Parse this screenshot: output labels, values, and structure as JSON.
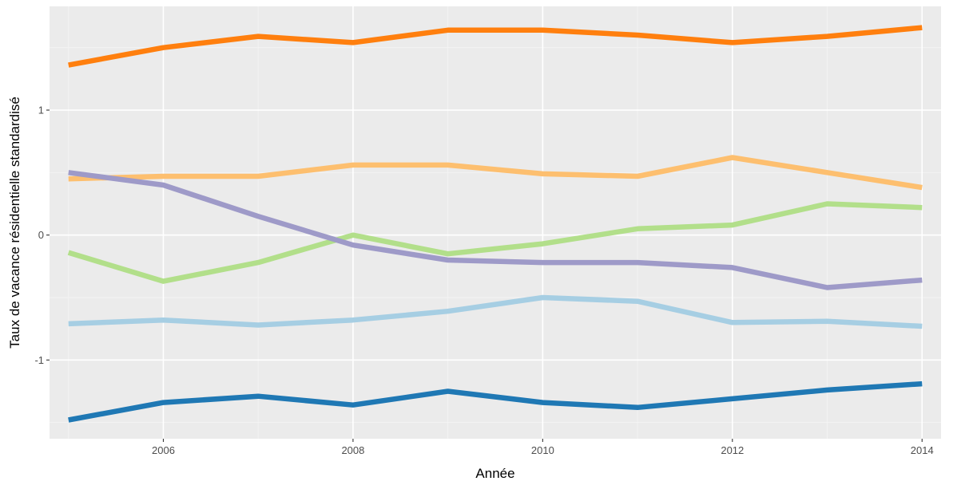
{
  "chart_data": {
    "type": "line",
    "title": "",
    "xlabel": "Année",
    "ylabel": "Taux de vacance résidentielle standardisé",
    "xlim": [
      2004.8,
      2014.2
    ],
    "ylim": [
      -1.63,
      1.83
    ],
    "x_ticks": [
      2006,
      2008,
      2010,
      2012,
      2014
    ],
    "y_ticks": [
      -1,
      0,
      1
    ],
    "x_tick_labels": [
      "2006",
      "2008",
      "2010",
      "2012",
      "2014"
    ],
    "y_tick_labels": [
      "-1",
      "0",
      "1"
    ],
    "grid": true,
    "legend": "none",
    "x": [
      2005,
      2006,
      2007,
      2008,
      2009,
      2010,
      2011,
      2012,
      2013,
      2014
    ],
    "series": [
      {
        "color": "#ff7f0e",
        "values": [
          1.36,
          1.5,
          1.59,
          1.54,
          1.64,
          1.64,
          1.6,
          1.54,
          1.59,
          1.66
        ]
      },
      {
        "color": "#fdbf6f",
        "values": [
          0.45,
          0.47,
          0.47,
          0.56,
          0.56,
          0.49,
          0.47,
          0.62,
          0.5,
          0.38
        ]
      },
      {
        "color": "#b2df8a",
        "values": [
          -0.14,
          -0.37,
          -0.22,
          0.0,
          -0.15,
          -0.07,
          0.05,
          0.08,
          0.25,
          0.22
        ]
      },
      {
        "color": "#9e9ac8",
        "values": [
          0.5,
          0.4,
          0.15,
          -0.08,
          -0.2,
          -0.22,
          -0.22,
          -0.26,
          -0.42,
          -0.36
        ]
      },
      {
        "color": "#a6cee3",
        "values": [
          -0.71,
          -0.68,
          -0.72,
          -0.68,
          -0.61,
          -0.5,
          -0.53,
          -0.7,
          -0.69,
          -0.73
        ]
      },
      {
        "color": "#1f78b4",
        "values": [
          -1.48,
          -1.34,
          -1.29,
          -1.36,
          -1.25,
          -1.34,
          -1.38,
          -1.31,
          -1.24,
          -1.19
        ]
      }
    ]
  },
  "style": {
    "panel_background": "#ebebeb",
    "grid_major_color": "#ffffff",
    "grid_minor_color": "#f4f4f4"
  }
}
